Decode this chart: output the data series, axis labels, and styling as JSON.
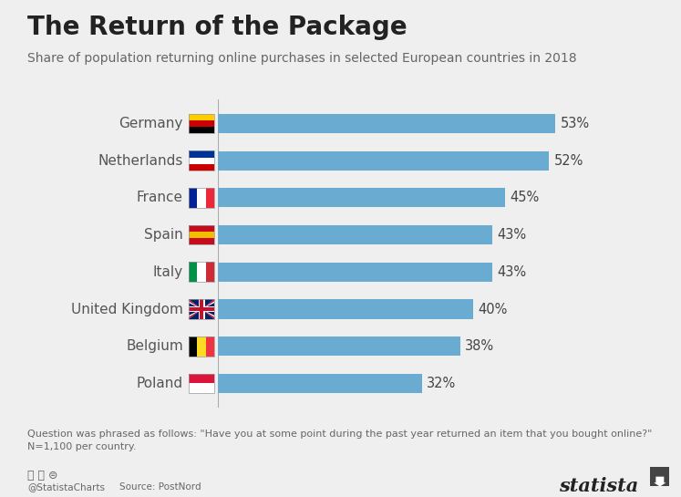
{
  "title": "The Return of the Package",
  "subtitle": "Share of population returning online purchases in selected European countries in 2018",
  "countries": [
    "Germany",
    "Netherlands",
    "France",
    "Spain",
    "Italy",
    "United Kingdom",
    "Belgium",
    "Poland"
  ],
  "values": [
    53,
    52,
    45,
    43,
    43,
    40,
    38,
    32
  ],
  "bar_color": "#6aabd2",
  "background_color": "#efefef",
  "title_fontsize": 20,
  "subtitle_fontsize": 10,
  "bar_label_fontsize": 10.5,
  "country_label_fontsize": 11,
  "footnote": "Question was phrased as follows: \"Have you at some point during the past year returned an item that you bought online?\"\nN=1,100 per country.",
  "source_text": "Source: PostNord",
  "credit_text": "@StatistaCharts",
  "statista_text": "statista",
  "xlim_max": 62,
  "bar_height": 0.52,
  "flag_colors": {
    "Germany": {
      "stripes": [
        "#000000",
        "#cc0000",
        "#ffcc00"
      ],
      "orientation": "horizontal"
    },
    "Netherlands": {
      "stripes": [
        "#cc0000",
        "#ffffff",
        "#003399"
      ],
      "orientation": "horizontal"
    },
    "France": {
      "stripes": [
        "#002395",
        "#ffffff",
        "#ed2939"
      ],
      "orientation": "vertical"
    },
    "Spain": {
      "stripes": [
        "#c60b1e",
        "#f1bf00",
        "#c60b1e"
      ],
      "orientation": "horizontal"
    },
    "Italy": {
      "stripes": [
        "#009246",
        "#ffffff",
        "#ce2b37"
      ],
      "orientation": "vertical"
    },
    "United Kingdom": {
      "stripes": [],
      "orientation": "union_jack"
    },
    "Belgium": {
      "stripes": [
        "#000000",
        "#fdda24",
        "#ef3340"
      ],
      "orientation": "vertical"
    },
    "Poland": {
      "stripes": [
        "#ffffff",
        "#dc143c"
      ],
      "orientation": "horizontal"
    }
  }
}
